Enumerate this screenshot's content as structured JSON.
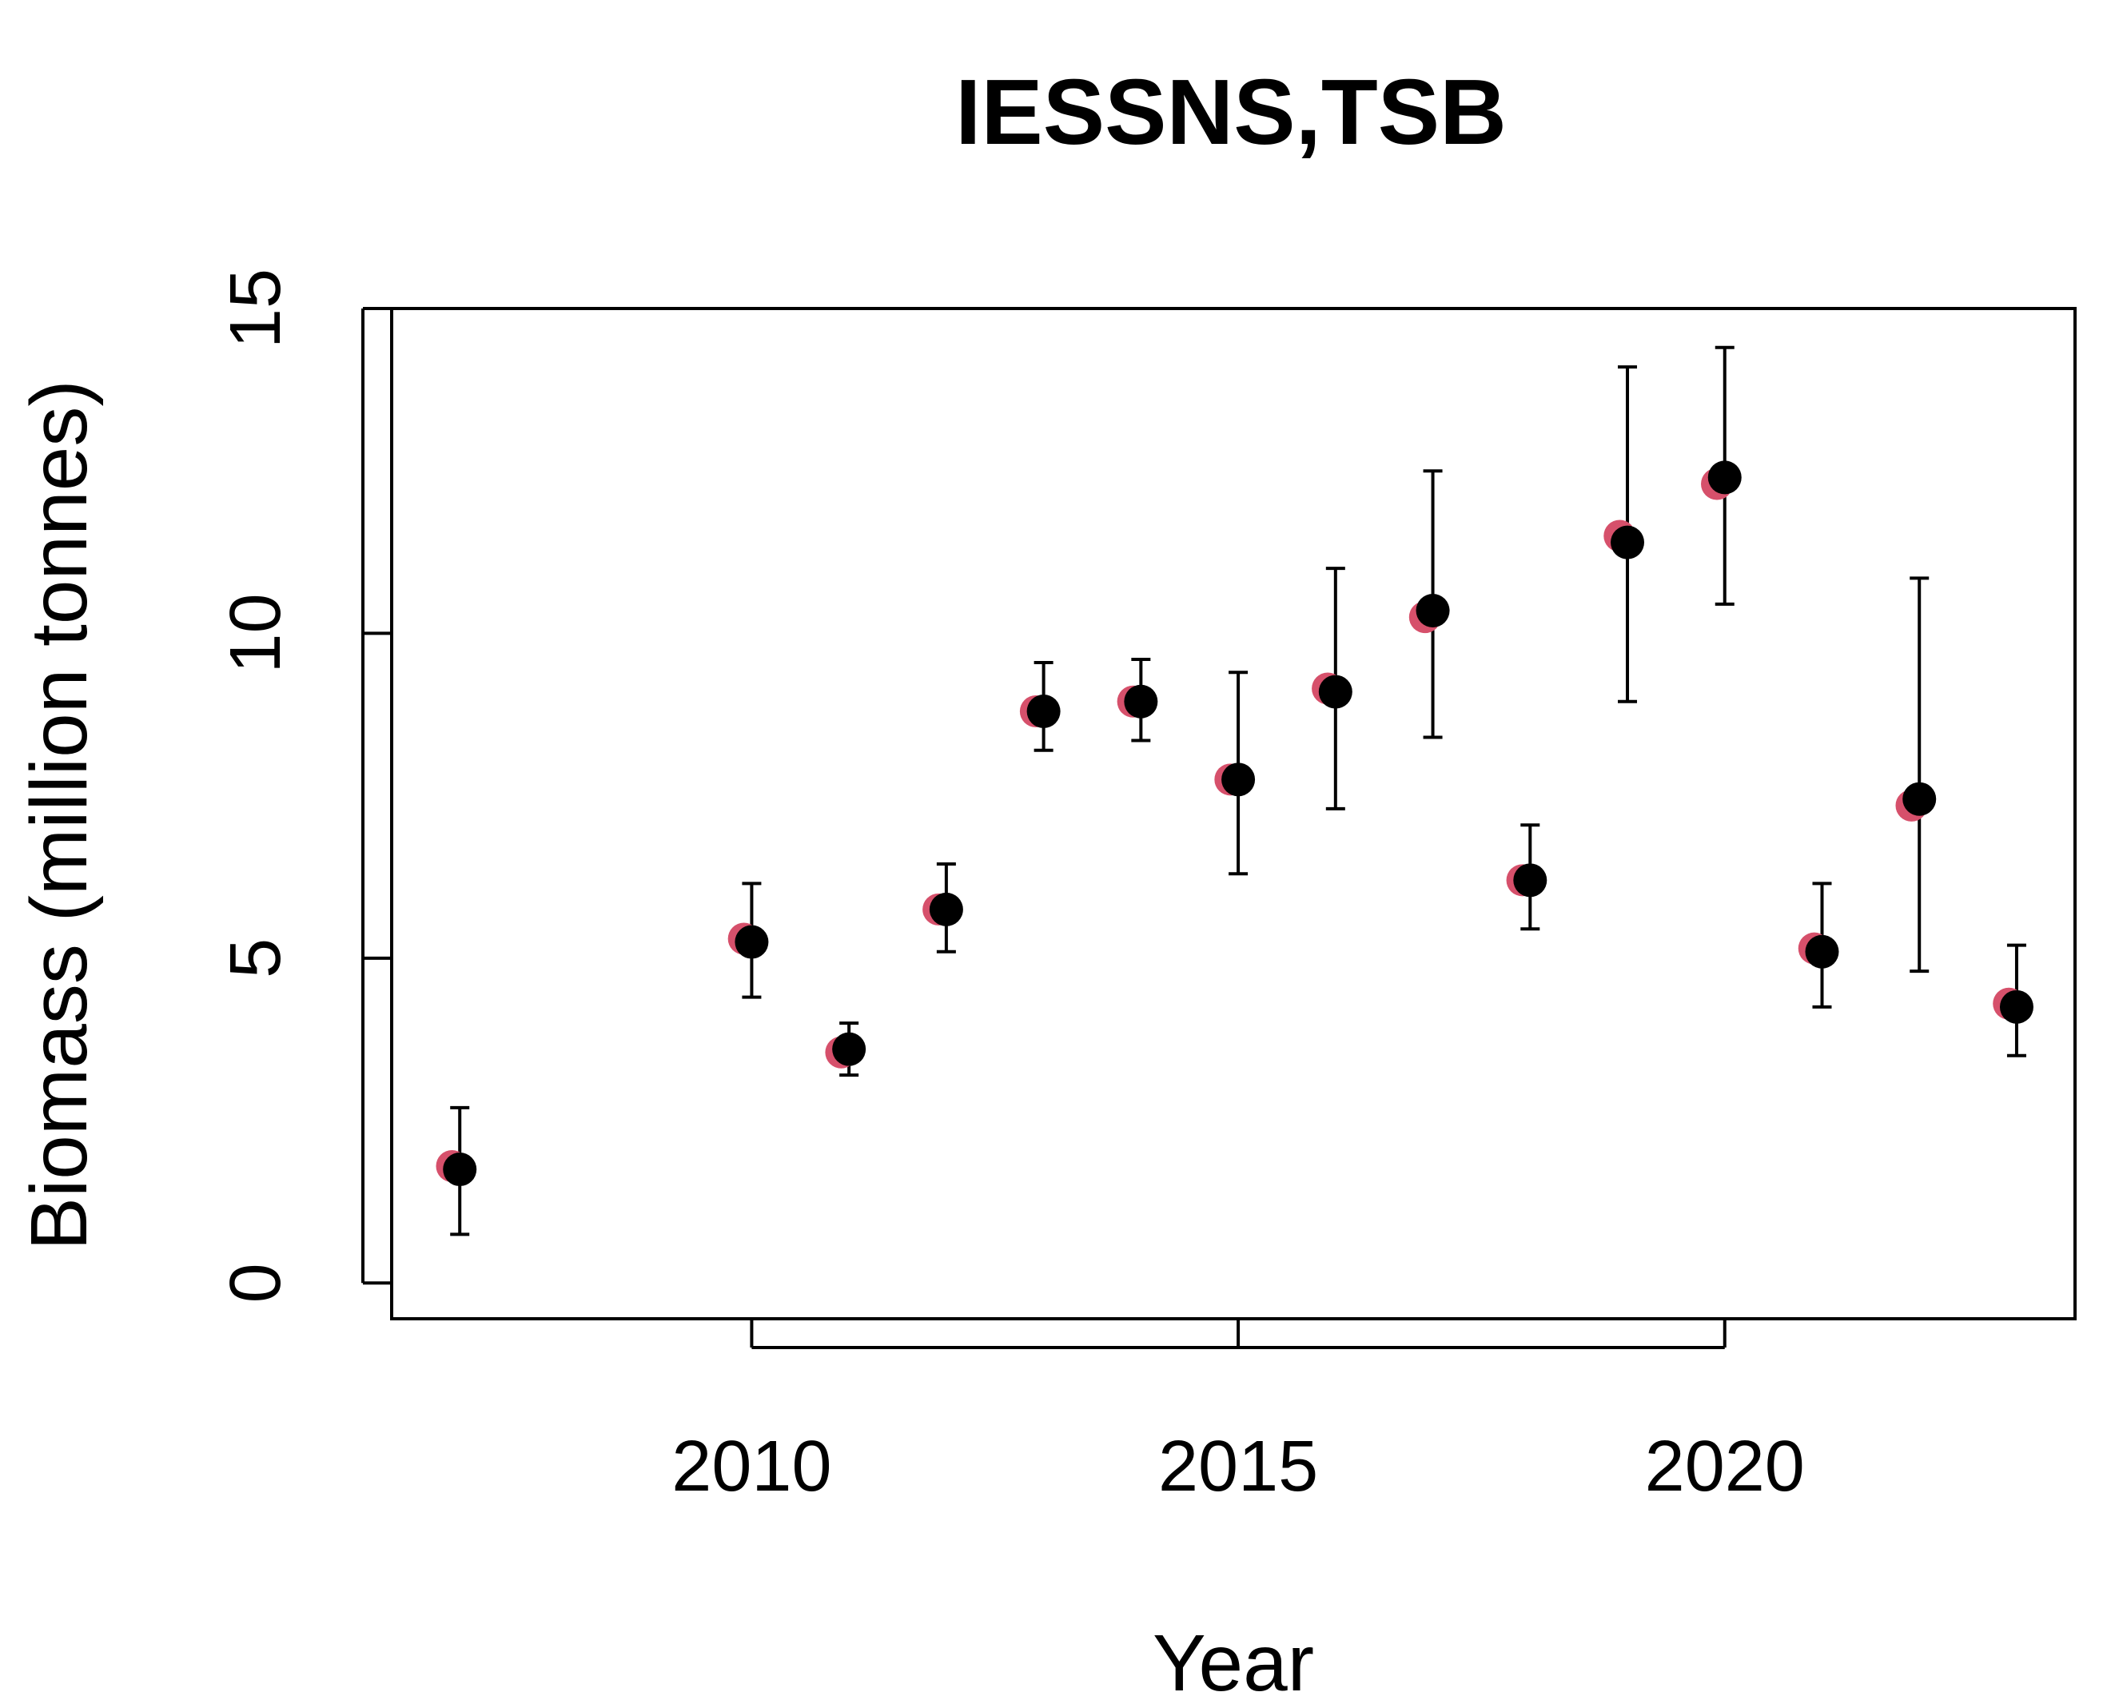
{
  "chart_data": {
    "type": "scatter",
    "title": "IESSNS,TSB",
    "xlabel": "Year",
    "ylabel": "Biomass (million tonnes)",
    "xlim": [
      2006.3,
      2023.6
    ],
    "ylim": [
      -0.55,
      15.0
    ],
    "xticks": [
      2010,
      2015,
      2020
    ],
    "yticks": [
      0,
      5,
      10,
      15
    ],
    "grid": false,
    "colors": {
      "observed": "#d6506b",
      "estimate": "#000000"
    },
    "series": [
      {
        "role": "observed",
        "points": [
          {
            "x": 2007,
            "y": 1.8
          },
          {
            "x": 2010,
            "y": 5.3
          },
          {
            "x": 2011,
            "y": 3.55
          },
          {
            "x": 2012,
            "y": 5.75
          },
          {
            "x": 2013,
            "y": 8.8
          },
          {
            "x": 2014,
            "y": 8.95
          },
          {
            "x": 2015,
            "y": 7.75
          },
          {
            "x": 2016,
            "y": 9.15
          },
          {
            "x": 2017,
            "y": 10.25
          },
          {
            "x": 2018,
            "y": 6.2
          },
          {
            "x": 2019,
            "y": 11.5
          },
          {
            "x": 2020,
            "y": 12.3
          },
          {
            "x": 2021,
            "y": 5.15
          },
          {
            "x": 2022,
            "y": 7.35
          },
          {
            "x": 2023,
            "y": 4.3
          }
        ]
      },
      {
        "role": "estimate",
        "points": [
          {
            "x": 2007,
            "y": 1.75,
            "lo": 0.75,
            "hi": 2.7
          },
          {
            "x": 2010,
            "y": 5.25,
            "lo": 4.4,
            "hi": 6.15
          },
          {
            "x": 2011,
            "y": 3.6,
            "lo": 3.2,
            "hi": 4.0
          },
          {
            "x": 2012,
            "y": 5.75,
            "lo": 5.1,
            "hi": 6.45
          },
          {
            "x": 2013,
            "y": 8.8,
            "lo": 8.2,
            "hi": 9.55
          },
          {
            "x": 2014,
            "y": 8.95,
            "lo": 8.35,
            "hi": 9.6
          },
          {
            "x": 2015,
            "y": 7.75,
            "lo": 6.3,
            "hi": 9.4
          },
          {
            "x": 2016,
            "y": 9.1,
            "lo": 7.3,
            "hi": 11.0
          },
          {
            "x": 2017,
            "y": 10.35,
            "lo": 8.4,
            "hi": 12.5
          },
          {
            "x": 2018,
            "y": 6.2,
            "lo": 5.45,
            "hi": 7.05
          },
          {
            "x": 2019,
            "y": 11.4,
            "lo": 8.95,
            "hi": 14.1
          },
          {
            "x": 2020,
            "y": 12.4,
            "lo": 10.45,
            "hi": 14.4
          },
          {
            "x": 2021,
            "y": 5.1,
            "lo": 4.25,
            "hi": 6.15
          },
          {
            "x": 2022,
            "y": 7.45,
            "lo": 4.8,
            "hi": 10.85
          },
          {
            "x": 2023,
            "y": 4.25,
            "lo": 3.5,
            "hi": 5.2
          }
        ]
      }
    ]
  }
}
